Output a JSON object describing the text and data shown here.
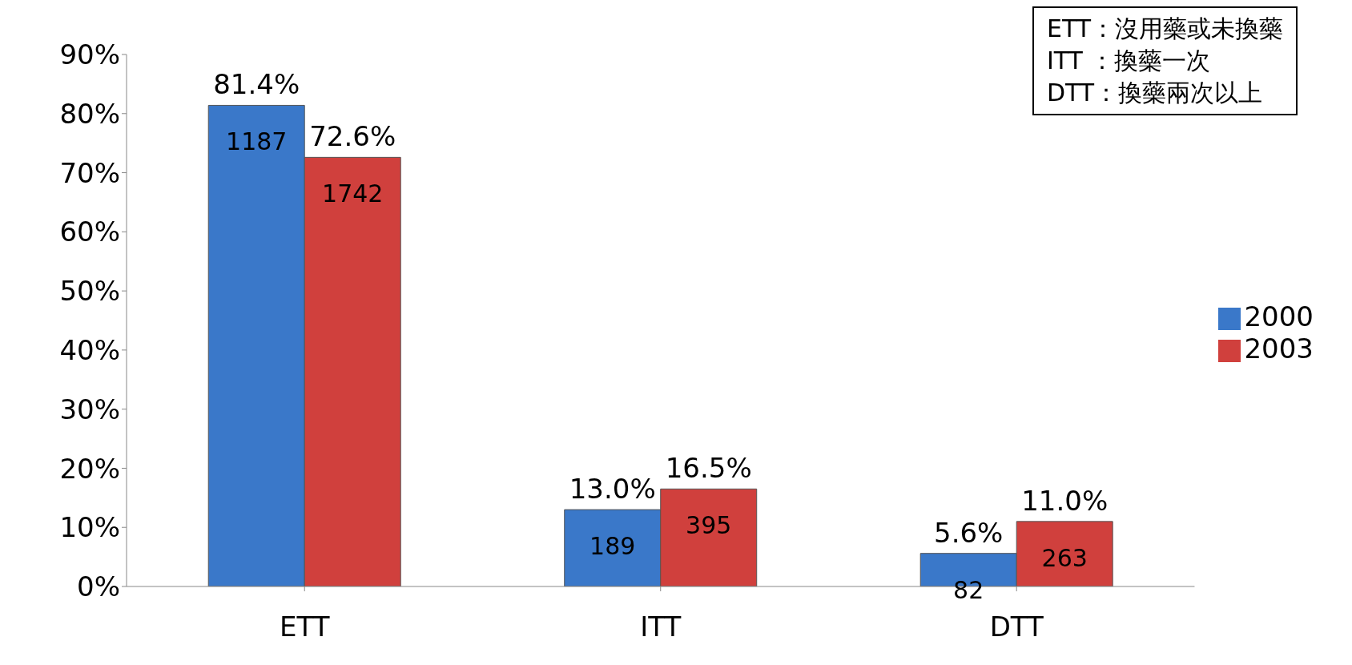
{
  "chart_data": {
    "type": "bar",
    "categories": [
      "ETT",
      "ITT",
      "DTT"
    ],
    "series": [
      {
        "name": "2000",
        "color": "#3a78c9",
        "values": [
          81.4,
          13.0,
          5.6
        ],
        "value_labels": [
          "81.4%",
          "13.0%",
          "5.6%"
        ]
      },
      {
        "name": "2003",
        "color": "#d0403d",
        "values": [
          72.6,
          16.5,
          11.0
        ],
        "value_labels": [
          "72.6%",
          "16.5%",
          "11.0%"
        ]
      }
    ],
    "ylim": [
      0,
      90
    ],
    "yticks": [
      {
        "value": 0,
        "label": "0%"
      },
      {
        "value": 10,
        "label": "10%"
      },
      {
        "value": 20,
        "label": "20%"
      },
      {
        "value": 30,
        "label": "30%"
      },
      {
        "value": 40,
        "label": "40%"
      },
      {
        "value": 50,
        "label": "50%"
      },
      {
        "value": 60,
        "label": "60%"
      },
      {
        "value": 70,
        "label": "70%"
      },
      {
        "value": 80,
        "label": "80%"
      },
      {
        "value": 90,
        "label": "90%"
      }
    ],
    "grid": false,
    "legend": "right",
    "annotations": [
      {
        "text": "1187",
        "x": "ETT",
        "y": 81.4
      },
      {
        "text": "189",
        "x": "ITT",
        "y": 13.0
      },
      {
        "text": "82",
        "x": "DTT",
        "y": 5.6
      },
      {
        "text": "1742",
        "x": "ETT",
        "y": 72.6
      },
      {
        "text": "395",
        "x": "ITT",
        "y": 16.5
      },
      {
        "text": "263",
        "x": "DTT",
        "y": 11.0
      },
      "ETT：沒用藥或未換藥",
      "ITT ：換藥一次",
      "DTT：換藥兩次以上"
    ]
  }
}
